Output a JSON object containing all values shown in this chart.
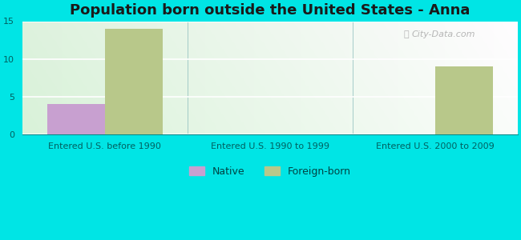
{
  "title": "Population born outside the United States - Anna",
  "categories": [
    "Entered U.S. before 1990",
    "Entered U.S. 1990 to 1999",
    "Entered U.S. 2000 to 2009"
  ],
  "native_values": [
    4.0,
    0,
    0
  ],
  "foreign_values": [
    14.0,
    0,
    9.0
  ],
  "native_color": "#c8a0d0",
  "foreign_color": "#b8c88a",
  "ylim": [
    0,
    15
  ],
  "yticks": [
    0,
    5,
    10,
    15
  ],
  "bar_width": 0.35,
  "background_outer": "#00e5e5",
  "watermark": "City-Data.com",
  "legend_native": "Native",
  "legend_foreign": "Foreign-born",
  "title_fontsize": 13,
  "tick_fontsize": 8,
  "legend_fontsize": 9
}
